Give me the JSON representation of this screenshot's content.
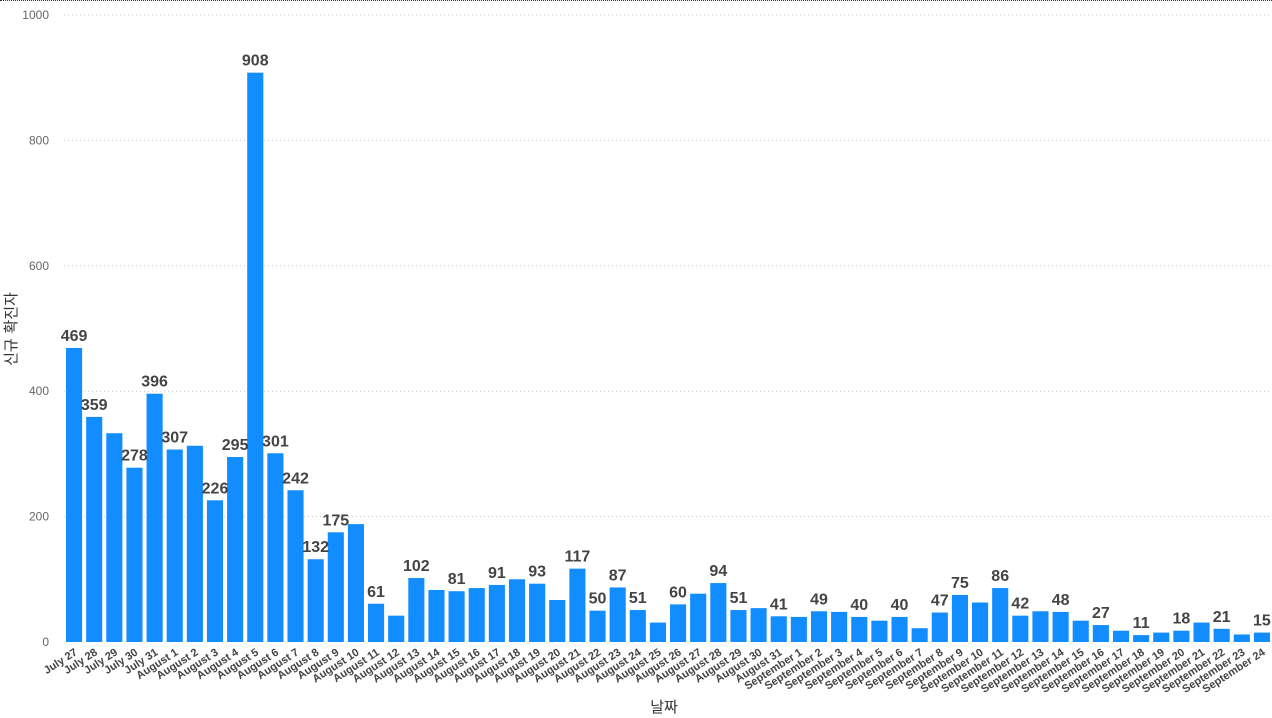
{
  "chart_data": {
    "type": "bar",
    "xlabel": "날짜",
    "ylabel": "신규 확진자",
    "ylim": [
      0,
      1000
    ],
    "y_ticks": [
      0,
      200,
      400,
      600,
      800,
      1000
    ],
    "grid": true,
    "bar_color": "#118DFF",
    "label_color": "#444444",
    "categories": [
      "July 27",
      "July 28",
      "July 29",
      "July 30",
      "July 31",
      "August 1",
      "August 2",
      "August 3",
      "August 4",
      "August 5",
      "August 6",
      "August 7",
      "August 8",
      "August 9",
      "August 10",
      "August 11",
      "August 12",
      "August 13",
      "August 14",
      "August 15",
      "August 16",
      "August 17",
      "August 18",
      "August 19",
      "August 20",
      "August 21",
      "August 22",
      "August 23",
      "August 24",
      "August 25",
      "August 26",
      "August 27",
      "August 28",
      "August 29",
      "August 30",
      "August 31",
      "September 1",
      "September 2",
      "September 3",
      "September 4",
      "September 5",
      "September 6",
      "September 7",
      "September 8",
      "September 9",
      "September 10",
      "September 11",
      "September 12",
      "September 13",
      "September 14",
      "September 15",
      "September 16",
      "September 17",
      "September 18",
      "September 19",
      "September 20",
      "September 21",
      "September 22",
      "September 23",
      "September 24"
    ],
    "values": [
      469,
      359,
      333,
      278,
      396,
      307,
      313,
      226,
      295,
      908,
      301,
      242,
      132,
      175,
      188,
      61,
      42,
      102,
      83,
      81,
      86,
      91,
      100,
      93,
      67,
      117,
      50,
      87,
      51,
      31,
      60,
      77,
      94,
      51,
      54,
      41,
      40,
      49,
      48,
      40,
      34,
      40,
      22,
      47,
      75,
      63,
      86,
      42,
      49,
      48,
      34,
      27,
      18,
      11,
      15,
      18,
      31,
      21,
      12,
      15
    ],
    "data_labels": [
      "469",
      "359",
      "",
      "278",
      "396",
      "307",
      "",
      "226",
      "295",
      "908",
      "301",
      "242",
      "132",
      "175",
      "",
      "61",
      "",
      "102",
      "",
      "81",
      "",
      "91",
      "",
      "93",
      "",
      "117",
      "50",
      "87",
      "51",
      "",
      "60",
      "",
      "94",
      "51",
      "",
      "41",
      "",
      "49",
      "",
      "40",
      "",
      "40",
      "",
      "47",
      "75",
      "",
      "86",
      "42",
      "",
      "48",
      "",
      "27",
      "",
      "11",
      "",
      "18",
      "",
      "21",
      "",
      "15"
    ]
  }
}
